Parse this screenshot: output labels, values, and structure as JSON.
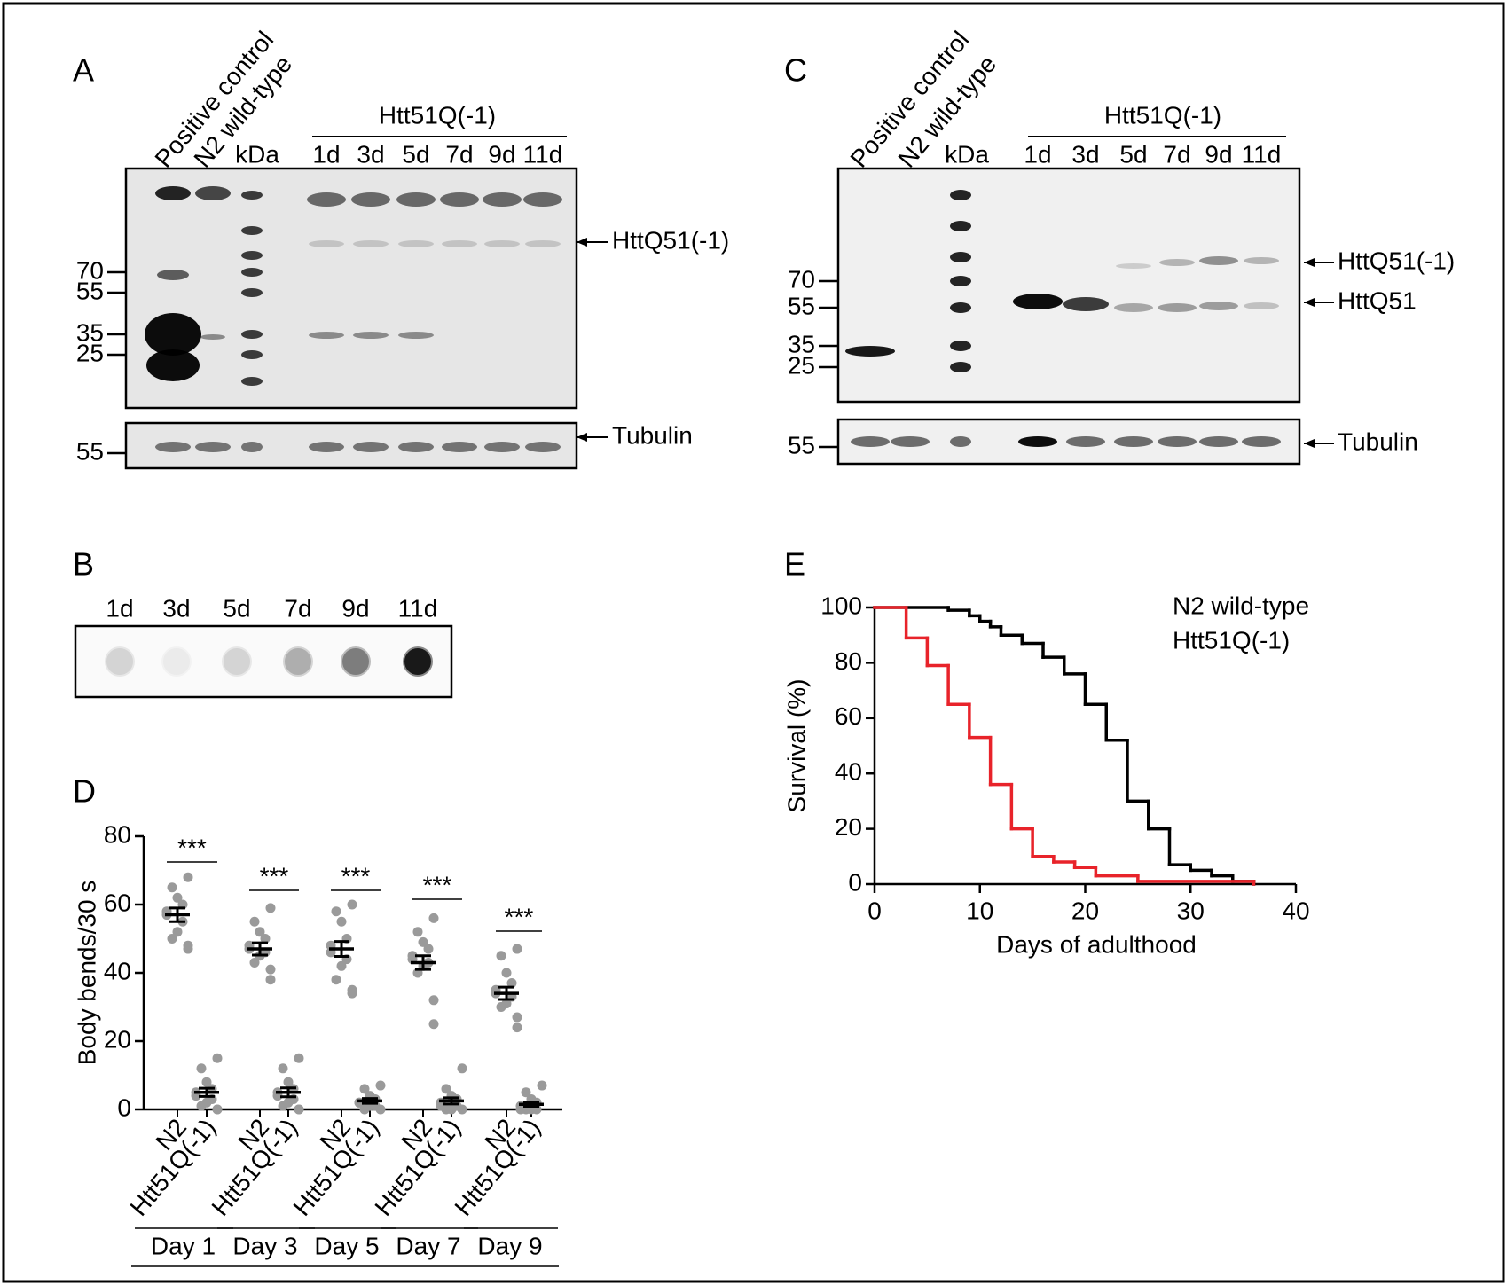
{
  "panel_a": {
    "letter": "A",
    "lanes": [
      "Positive control",
      "N2 wild-type"
    ],
    "ladder": "kDa",
    "group": "Htt51Q(-1)",
    "days": [
      "1d",
      "3d",
      "5d",
      "7d",
      "9d",
      "11d"
    ],
    "markers": [
      70,
      55,
      35,
      25
    ],
    "band_label": "HttQ51(-1)",
    "loading_label": "Tubulin",
    "loading_marker": 55
  },
  "panel_b": {
    "letter": "B",
    "days": [
      "1d",
      "3d",
      "5d",
      "7d",
      "9d",
      "11d"
    ]
  },
  "panel_c": {
    "letter": "C",
    "lanes": [
      "Positive control",
      "N2 wild-type"
    ],
    "ladder": "kDa",
    "group": "Htt51Q(-1)",
    "days": [
      "1d",
      "3d",
      "5d",
      "7d",
      "9d",
      "11d"
    ],
    "markers": [
      70,
      55,
      35,
      25
    ],
    "band_labels": [
      "HttQ51(-1)",
      "HttQ51"
    ],
    "loading_label": "Tubulin",
    "loading_marker": 55
  },
  "chart_data": [
    {
      "type": "dot",
      "letter": "D",
      "y_label": "Body bends/30 s",
      "ylim": [
        0,
        80
      ],
      "yticks": [
        0,
        20,
        40,
        60,
        80
      ],
      "categories": [
        "N2",
        "Htt51Q(-1)",
        "N2",
        "Htt51Q(-1)",
        "N2",
        "Htt51Q(-1)",
        "N2",
        "Htt51Q(-1)",
        "N2",
        "Htt51Q(-1)"
      ],
      "groups": [
        "Day 1",
        "Day 3",
        "Day 5",
        "Day 7",
        "Day 9"
      ],
      "significance": [
        "***",
        "***",
        "***",
        "***",
        "***"
      ],
      "means": [
        57,
        5,
        47,
        5,
        47,
        2.5,
        43,
        2.5,
        34,
        1.5
      ],
      "sem": [
        2,
        1.2,
        1.8,
        1.3,
        2.2,
        0.7,
        2,
        0.9,
        1.8,
        0.6
      ],
      "points": [
        [
          68,
          65,
          62,
          60,
          58,
          57,
          55,
          52,
          50,
          48,
          47
        ],
        [
          15,
          12,
          8,
          6,
          5,
          4,
          3,
          2,
          1,
          0,
          0
        ],
        [
          59,
          55,
          52,
          50,
          48,
          47,
          46,
          45,
          43,
          41,
          38
        ],
        [
          15,
          12,
          8,
          6,
          5,
          4,
          3,
          2,
          1,
          0,
          0
        ],
        [
          60,
          58,
          55,
          50,
          48,
          46,
          44,
          42,
          38,
          35,
          34
        ],
        [
          7,
          6,
          4,
          3,
          2,
          2,
          1,
          1,
          0,
          0
        ],
        [
          56,
          52,
          49,
          47,
          45,
          44,
          43,
          42,
          40,
          32,
          25
        ],
        [
          12,
          6,
          4,
          3,
          2,
          1,
          1,
          0,
          0,
          0
        ],
        [
          47,
          45,
          40,
          37,
          35,
          34,
          33,
          31,
          30,
          27,
          24
        ],
        [
          7,
          5,
          3,
          2,
          1,
          0,
          0,
          0,
          0
        ]
      ],
      "color": "#9a9a9a",
      "mean_color": "#000000"
    },
    {
      "type": "step",
      "letter": "E",
      "x_label": "Days of adulthood",
      "y_label": "Survival (%)",
      "xlim": [
        0,
        40
      ],
      "xticks": [
        0,
        10,
        20,
        30,
        40
      ],
      "ylim": [
        0,
        100
      ],
      "yticks": [
        0,
        20,
        40,
        60,
        80,
        100
      ],
      "series": [
        {
          "name": "N2 wild-type",
          "color": "#000000",
          "x": [
            0,
            7,
            9,
            10,
            11,
            12,
            14,
            16,
            18,
            20,
            22,
            24,
            26,
            28,
            30,
            32,
            34,
            36
          ],
          "values": [
            100,
            99,
            97,
            95,
            93,
            90,
            87,
            82,
            76,
            65,
            52,
            30,
            20,
            7,
            5,
            3,
            1,
            0
          ]
        },
        {
          "name": "Htt51Q(-1)",
          "color": "#e8232a",
          "x": [
            0,
            3,
            5,
            7,
            9,
            11,
            13,
            15,
            17,
            19,
            21,
            25,
            36
          ],
          "values": [
            100,
            89,
            79,
            65,
            53,
            36,
            20,
            10,
            8,
            6,
            3,
            1,
            0
          ]
        }
      ]
    }
  ]
}
